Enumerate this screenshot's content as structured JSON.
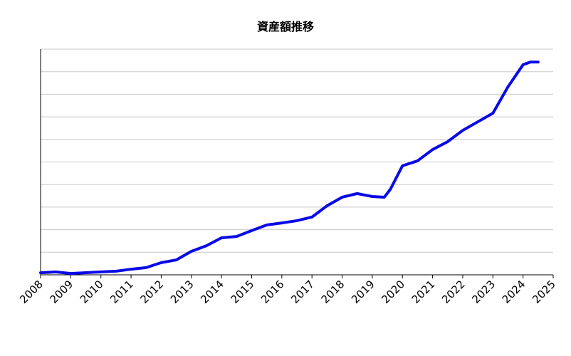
{
  "chart_data": {
    "type": "line",
    "title": "資産額推移",
    "x": [
      2008,
      2008.5,
      2009,
      2010,
      2010.5,
      2011,
      2011.5,
      2012,
      2012.5,
      2013,
      2013.5,
      2014,
      2014.5,
      2015,
      2015.5,
      2016,
      2016.5,
      2017,
      2017.5,
      2018,
      2018.5,
      2019,
      2019.4,
      2019.6,
      2020,
      2020.5,
      2021,
      2021.5,
      2022,
      2022.5,
      2023,
      2023.5,
      2024,
      2024.25,
      2024.5
    ],
    "series": [
      {
        "color": "#0a0ae6",
        "values": [
          0.09,
          0.13,
          0.06,
          0.13,
          0.16,
          0.25,
          0.32,
          0.54,
          0.66,
          1.04,
          1.29,
          1.64,
          1.7,
          1.96,
          2.21,
          2.3,
          2.4,
          2.56,
          3.06,
          3.44,
          3.6,
          3.47,
          3.44,
          3.79,
          4.83,
          5.05,
          5.55,
          5.9,
          6.4,
          6.78,
          7.16,
          8.33,
          9.31,
          9.43,
          9.43
        ]
      }
    ],
    "xlim": [
      2008,
      2025
    ],
    "xticks": [
      2008,
      2009,
      2010,
      2011,
      2012,
      2013,
      2014,
      2015,
      2016,
      2017,
      2018,
      2019,
      2020,
      2021,
      2022,
      2023,
      2024,
      2025
    ],
    "ylim": [
      0,
      10
    ],
    "yticks": [
      0,
      1,
      2,
      3,
      4,
      5,
      6,
      7,
      8,
      9,
      10
    ],
    "ytick_labels": false,
    "grid": true
  }
}
